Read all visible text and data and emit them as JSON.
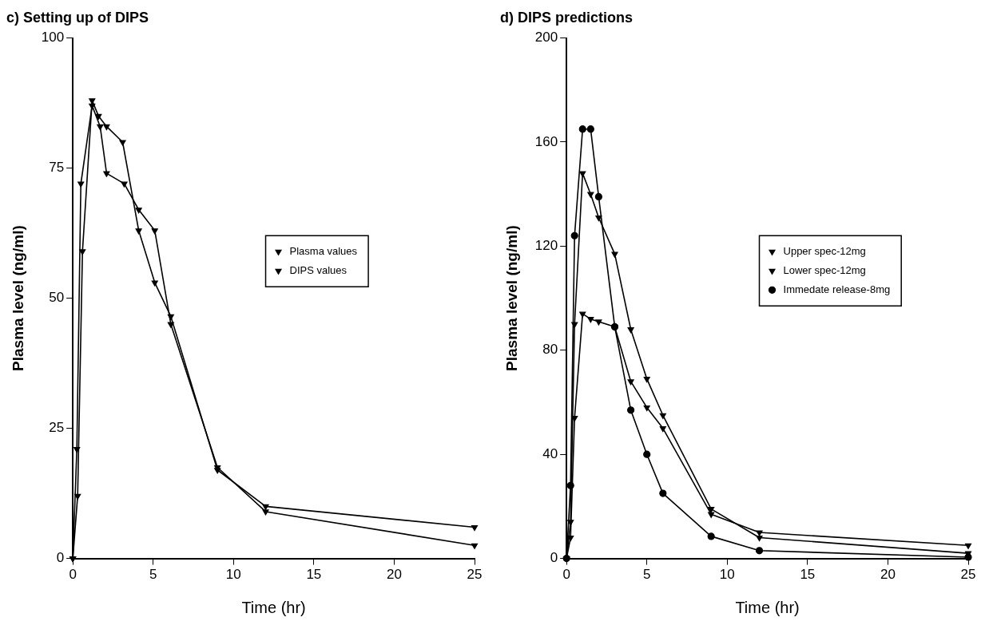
{
  "chart_data": [
    {
      "type": "line",
      "title": "c) Setting up of DIPS",
      "xlabel": "Time (hr)",
      "ylabel": "Plasma level (ng/ml)",
      "xlim": [
        0,
        25
      ],
      "xticks": [
        0,
        5,
        10,
        15,
        20,
        25
      ],
      "ylim": [
        0,
        100
      ],
      "yticks": [
        0,
        25,
        50,
        75,
        100
      ],
      "grid": false,
      "legend": "right",
      "line_style": "solid",
      "series": [
        {
          "name": "Plasma values",
          "color": "#000000",
          "marker": "triangle",
          "x": [
            0,
            0.25,
            0.5,
            1.2,
            1.7,
            2.1,
            3.2,
            4.1,
            5.1,
            6.1,
            9,
            12,
            25
          ],
          "values": [
            0,
            21,
            72,
            87,
            83,
            74,
            72,
            67,
            63,
            45,
            17.5,
            9,
            2.5
          ]
        },
        {
          "name": "DIPS values",
          "color": "#000000",
          "marker": "triangle",
          "x": [
            0,
            0.3,
            0.6,
            1.2,
            1.6,
            2.1,
            3.1,
            4.1,
            5.1,
            6.1,
            9,
            12,
            25
          ],
          "values": [
            0,
            12,
            59,
            88,
            85,
            83,
            80,
            63,
            53,
            46.5,
            17,
            10,
            6
          ]
        }
      ]
    },
    {
      "type": "line",
      "title": "d) DIPS predictions",
      "xlabel": "Time (hr)",
      "ylabel": "Plasma level (ng/ml)",
      "xlim": [
        0,
        25
      ],
      "xticks": [
        0,
        5,
        10,
        15,
        20,
        25
      ],
      "ylim": [
        0,
        200
      ],
      "yticks": [
        0,
        40,
        80,
        120,
        160,
        200
      ],
      "grid": false,
      "legend": "right",
      "line_style": "solid",
      "series": [
        {
          "name": "Upper spec-12mg",
          "color": "#000000",
          "marker": "triangle",
          "x": [
            0,
            0.25,
            0.5,
            1,
            1.5,
            2,
            3,
            4,
            5,
            6,
            9,
            12,
            25
          ],
          "values": [
            0,
            14,
            90,
            148,
            140,
            131,
            117,
            88,
            69,
            55,
            19,
            8,
            2
          ]
        },
        {
          "name": "Lower spec-12mg",
          "color": "#000000",
          "marker": "triangle",
          "x": [
            0,
            0.25,
            0.5,
            1,
            1.5,
            2,
            3,
            4,
            5,
            6,
            9,
            12,
            25
          ],
          "values": [
            0,
            8,
            54,
            94,
            92,
            91,
            89,
            68,
            58,
            50,
            17,
            10,
            5
          ]
        },
        {
          "name": "Immedate release-8mg",
          "color": "#000000",
          "marker": "circle",
          "x": [
            0,
            0.25,
            0.5,
            1,
            1.5,
            2,
            3,
            4,
            5,
            6,
            9,
            12,
            25
          ],
          "values": [
            0,
            28,
            124,
            165,
            165,
            139,
            89,
            57,
            40,
            25,
            8.5,
            3,
            0.5
          ]
        }
      ]
    }
  ]
}
